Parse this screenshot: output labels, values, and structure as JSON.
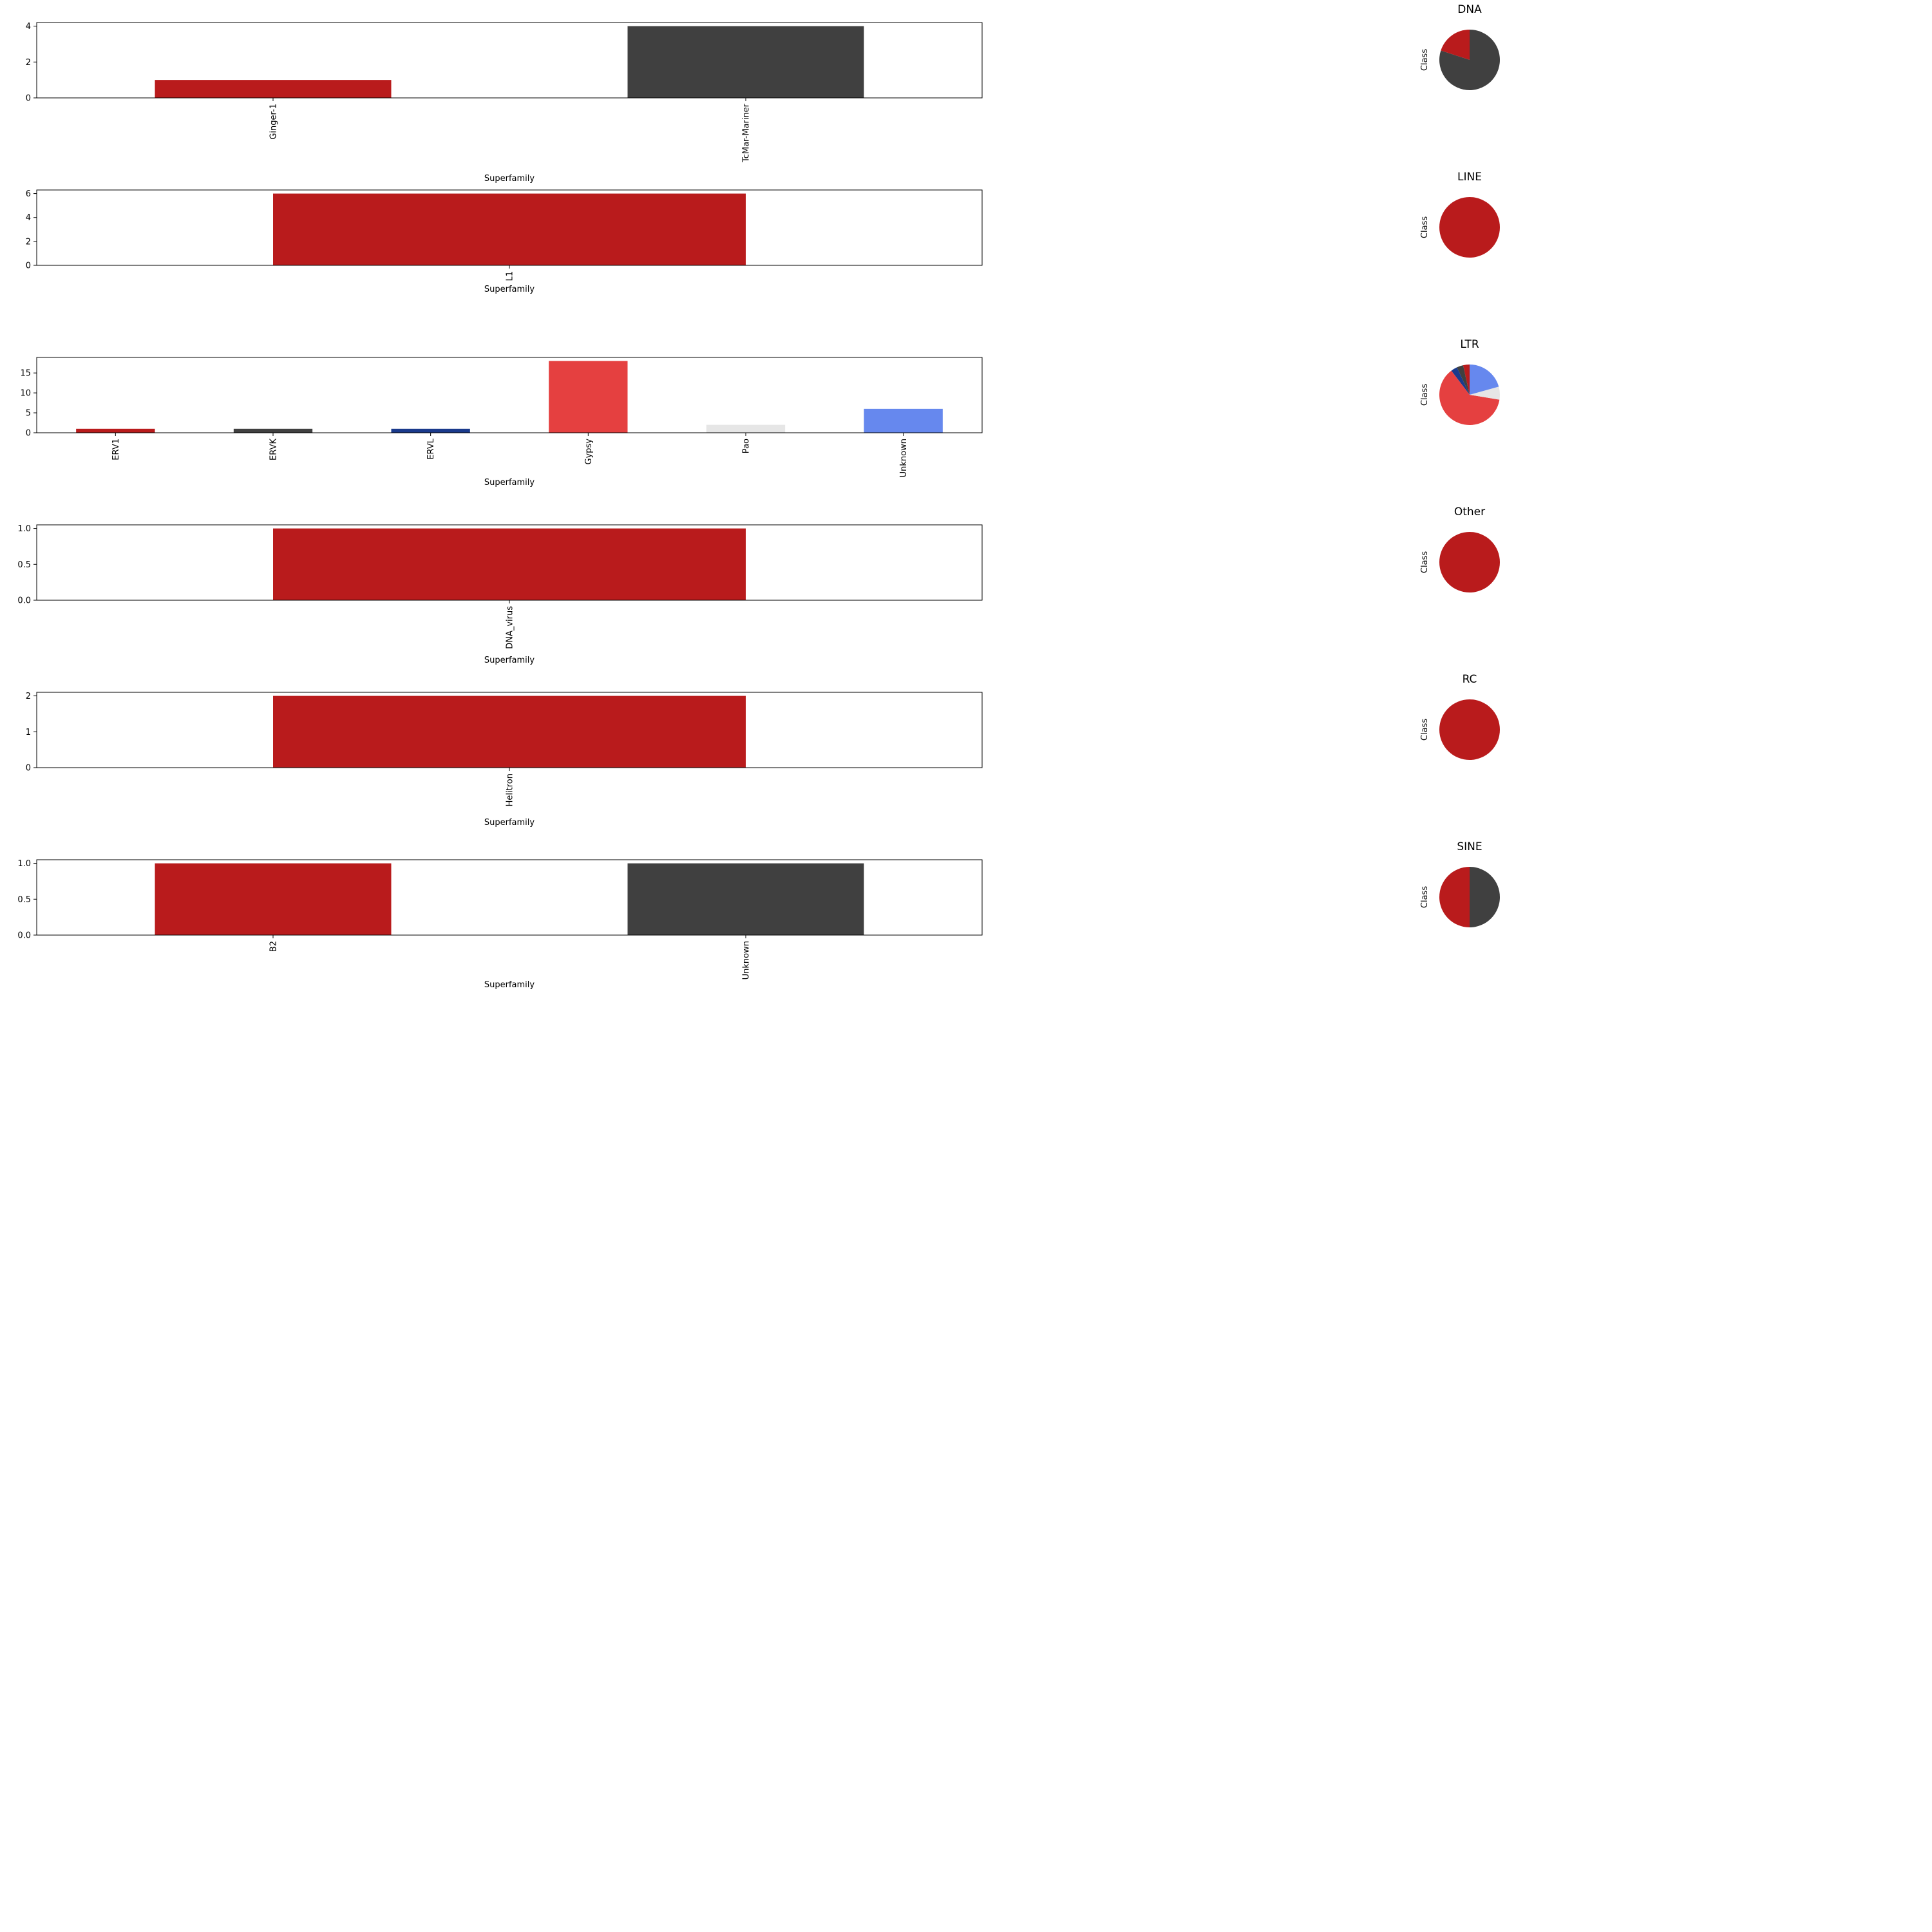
{
  "chart_data": [
    {
      "type": "bar",
      "class_name": "DNA",
      "categories": [
        "Ginger-1",
        "TcMar-Mariner"
      ],
      "values": [
        1,
        4
      ],
      "colors": [
        "#b91b1c",
        "#404040"
      ],
      "xlabel": "Superfamily",
      "ylim": [
        0,
        4.2
      ],
      "yticks": [
        0,
        2,
        4
      ],
      "grid": false
    },
    {
      "type": "bar",
      "class_name": "LINE",
      "categories": [
        "L1"
      ],
      "values": [
        6
      ],
      "colors": [
        "#b91b1c"
      ],
      "xlabel": "Superfamily",
      "ylim": [
        0,
        6.3
      ],
      "yticks": [
        0,
        2,
        4,
        6
      ],
      "grid": false
    },
    {
      "type": "bar",
      "class_name": "LTR",
      "categories": [
        "ERV1",
        "ERVK",
        "ERVL",
        "Gypsy",
        "Pao",
        "Unknown"
      ],
      "values": [
        1,
        1,
        1,
        18,
        2,
        6
      ],
      "colors": [
        "#b91b1c",
        "#404040",
        "#1a3a8c",
        "#e54040",
        "#e6e6e6",
        "#6688ee"
      ],
      "xlabel": "Superfamily",
      "ylim": [
        0,
        18.9
      ],
      "yticks": [
        0,
        5,
        10,
        15
      ],
      "grid": false
    },
    {
      "type": "bar",
      "class_name": "Other",
      "categories": [
        "DNA_virus"
      ],
      "values": [
        1
      ],
      "colors": [
        "#b91b1c"
      ],
      "xlabel": "Superfamily",
      "ylim": [
        0,
        1.05
      ],
      "yticks": [
        0.0,
        0.5,
        1.0
      ],
      "yticklabels": [
        "0.0",
        "0.5",
        "1.0"
      ],
      "grid": false
    },
    {
      "type": "bar",
      "class_name": "RC",
      "categories": [
        "Helitron"
      ],
      "values": [
        2
      ],
      "colors": [
        "#b91b1c"
      ],
      "xlabel": "Superfamily",
      "ylim": [
        0,
        2.1
      ],
      "yticks": [
        0,
        1,
        2
      ],
      "grid": false
    },
    {
      "type": "bar",
      "class_name": "SINE",
      "categories": [
        "B2",
        "Unknown"
      ],
      "values": [
        1,
        1
      ],
      "colors": [
        "#b91b1c",
        "#404040"
      ],
      "xlabel": "Superfamily",
      "ylim": [
        0,
        1.05
      ],
      "yticks": [
        0.0,
        0.5,
        1.0
      ],
      "yticklabels": [
        "0.0",
        "0.5",
        "1.0"
      ],
      "grid": false
    },
    {
      "type": "pie",
      "title": "DNA",
      "ylabel": "Class",
      "categories": [
        "Ginger-1",
        "TcMar-Mariner"
      ],
      "values": [
        1,
        4
      ],
      "colors": [
        "#b91b1c",
        "#404040"
      ]
    },
    {
      "type": "pie",
      "title": "LINE",
      "ylabel": "Class",
      "categories": [
        "L1"
      ],
      "values": [
        6
      ],
      "colors": [
        "#b91b1c"
      ]
    },
    {
      "type": "pie",
      "title": "LTR",
      "ylabel": "Class",
      "categories": [
        "ERV1",
        "ERVK",
        "ERVL",
        "Gypsy",
        "Pao",
        "Unknown"
      ],
      "values": [
        1,
        1,
        1,
        18,
        2,
        6
      ],
      "colors": [
        "#b91b1c",
        "#404040",
        "#1a3a8c",
        "#e54040",
        "#e6e6e6",
        "#6688ee"
      ]
    },
    {
      "type": "pie",
      "title": "Other",
      "ylabel": "Class",
      "categories": [
        "DNA_virus"
      ],
      "values": [
        1
      ],
      "colors": [
        "#b91b1c"
      ]
    },
    {
      "type": "pie",
      "title": "RC",
      "ylabel": "Class",
      "categories": [
        "Helitron"
      ],
      "values": [
        2
      ],
      "colors": [
        "#b91b1c"
      ]
    },
    {
      "type": "pie",
      "title": "SINE",
      "ylabel": "Class",
      "categories": [
        "B2",
        "Unknown"
      ],
      "values": [
        1,
        1
      ],
      "colors": [
        "#b91b1c",
        "#404040"
      ]
    }
  ]
}
